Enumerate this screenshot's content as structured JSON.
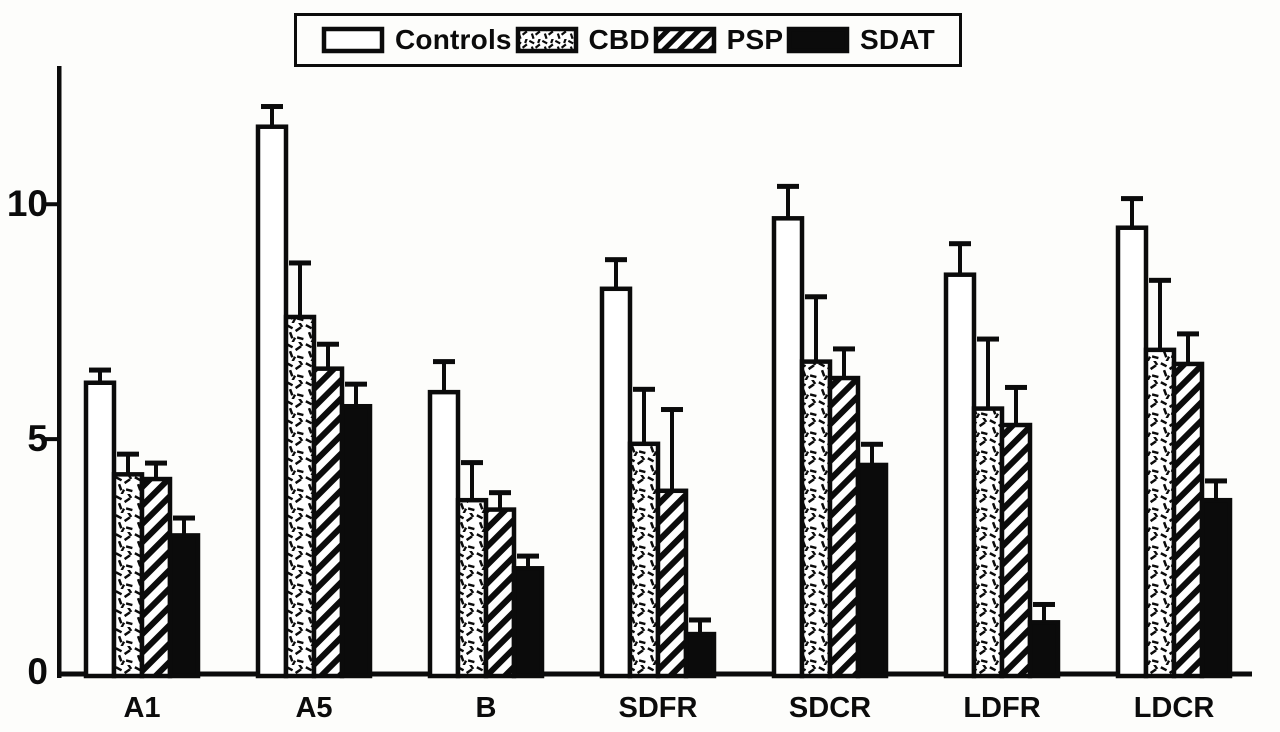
{
  "figure": {
    "background": "#fdfdfb",
    "ink": "#0b0b0b"
  },
  "legend": {
    "items": [
      {
        "label": "Controls",
        "pattern": "white"
      },
      {
        "label": "CBD",
        "pattern": "stipple"
      },
      {
        "label": "PSP",
        "pattern": "hatch"
      },
      {
        "label": "SDAT",
        "pattern": "black"
      }
    ]
  },
  "chart_data": {
    "type": "bar",
    "title": "",
    "xlabel": "",
    "ylabel": "",
    "categories": [
      "A1",
      "A5",
      "B",
      "SDFR",
      "SDCR",
      "LDFR",
      "LDCR"
    ],
    "series": [
      {
        "name": "Controls",
        "fill": "white",
        "values": [
          6.2,
          11.65,
          6.0,
          8.2,
          9.7,
          8.5,
          9.5
        ],
        "errors": [
          0.27,
          0.43,
          0.65,
          0.62,
          0.68,
          0.66,
          0.62
        ]
      },
      {
        "name": "CBD",
        "fill": "stipple",
        "values": [
          4.25,
          7.6,
          3.7,
          4.9,
          6.65,
          5.65,
          6.9
        ],
        "errors": [
          0.43,
          1.15,
          0.8,
          1.16,
          1.38,
          1.48,
          1.48
        ]
      },
      {
        "name": "PSP",
        "fill": "hatch",
        "values": [
          4.15,
          6.5,
          3.5,
          3.9,
          6.3,
          5.3,
          6.6
        ],
        "errors": [
          0.34,
          0.52,
          0.36,
          1.73,
          0.62,
          0.8,
          0.64
        ]
      },
      {
        "name": "SDAT",
        "fill": "black",
        "values": [
          2.95,
          5.7,
          2.25,
          0.85,
          4.45,
          1.1,
          3.7
        ],
        "errors": [
          0.37,
          0.47,
          0.26,
          0.3,
          0.44,
          0.38,
          0.41
        ]
      }
    ],
    "yticks": [
      0,
      5,
      10
    ],
    "ylim": [
      0,
      12.9
    ],
    "grid": false,
    "legend_position": "top-center",
    "error_bars": "upper-only"
  }
}
